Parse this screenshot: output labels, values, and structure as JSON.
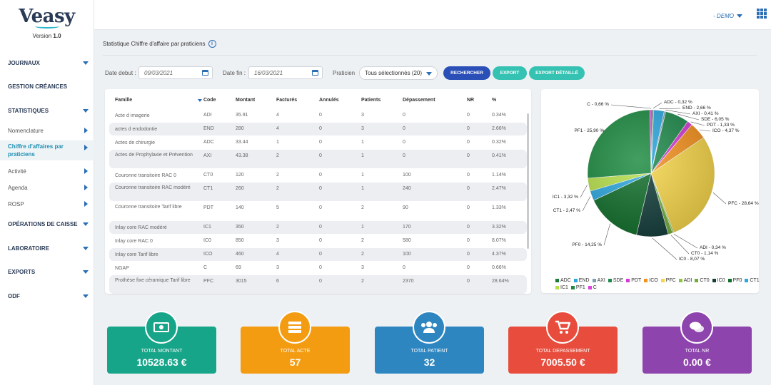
{
  "app": {
    "logo_text": "Veasy",
    "version_label": "Version",
    "version_number": "1.0"
  },
  "sidebar": {
    "items": [
      {
        "label": "JOURNAUX"
      },
      {
        "label": "GESTION CRÉANCES"
      },
      {
        "label": "STATISTIQUES"
      },
      {
        "label": "Nomenclature"
      },
      {
        "label": "Chiffre d'affaires par praticiens"
      },
      {
        "label": "Activité"
      },
      {
        "label": "Agenda"
      },
      {
        "label": "ROSP"
      },
      {
        "label": "OPÉRATIONS DE CAISSE"
      },
      {
        "label": "LABORATOIRE"
      },
      {
        "label": "EXPORTS"
      },
      {
        "label": "ODF"
      }
    ]
  },
  "topbar": {
    "user_label": "- DEMO"
  },
  "page": {
    "title": "Statistique Chiffre d'affaire par praticiens"
  },
  "filters": {
    "date_debut_label": "Date debut :",
    "date_debut_value": "09/03/2021",
    "date_fin_label": "Date fin :",
    "date_fin_value": "16/03/2021",
    "praticien_label": "Praticien",
    "praticien_value": "Tous sélectionnés (20)",
    "rechercher": "RECHERCHER",
    "export": "EXPORT",
    "export_detaille": "EXPORT DÉTAILLÉ"
  },
  "table": {
    "headers": [
      "Famille",
      "Code",
      "Montant",
      "Facturés",
      "Annulés",
      "Patients",
      "Dépassement",
      "NR",
      "%"
    ],
    "rows": [
      [
        "Acte d imagerie",
        "ADI",
        "35.91",
        "4",
        "0",
        "3",
        "0",
        "0",
        "0.34%"
      ],
      [
        "actes d endodontie",
        "END",
        "280",
        "4",
        "0",
        "3",
        "0",
        "0",
        "2.66%"
      ],
      [
        "Actes de chirurgie",
        "ADC",
        "33.44",
        "1",
        "0",
        "1",
        "0",
        "0",
        "0.32%"
      ],
      [
        "Actes de Prophylaxie et Prévention",
        "AXI",
        "43.38",
        "2",
        "0",
        "1",
        "0",
        "0",
        "0.41%"
      ],
      [
        "Couronne transitoire RAC 0",
        "CT0",
        "120",
        "2",
        "0",
        "1",
        "100",
        "0",
        "1.14%"
      ],
      [
        "Couronne transitoire RAC modéré",
        "CT1",
        "260",
        "2",
        "0",
        "1",
        "240",
        "0",
        "2.47%"
      ],
      [
        "Couronne transitoire Tarif libre",
        "PDT",
        "140",
        "5",
        "0",
        "2",
        "90",
        "0",
        "1.33%"
      ],
      [
        "Inlay core RAC modéré",
        "IC1",
        "350",
        "2",
        "0",
        "1",
        "170",
        "0",
        "3.32%"
      ],
      [
        "Inlay core RAC 0",
        "IC0",
        "850",
        "3",
        "0",
        "2",
        "580",
        "0",
        "8.07%"
      ],
      [
        "Inlay core Tarif libre",
        "ICO",
        "460",
        "4",
        "0",
        "2",
        "100",
        "0",
        "4.37%"
      ],
      [
        "NGAP",
        "C",
        "69",
        "3",
        "0",
        "3",
        "0",
        "0",
        "0.66%"
      ],
      [
        "Prothèse fixe céramique Tarif libre",
        "PFC",
        "3015",
        "6",
        "0",
        "2",
        "2370",
        "0",
        "28.64%"
      ]
    ]
  },
  "chart_data": {
    "type": "pie",
    "slices": [
      {
        "label": "C - 0,66 %",
        "code": "C",
        "value": 0.66,
        "color": "#e040e0"
      },
      {
        "label": "ADC - 0,32 %",
        "code": "ADC",
        "value": 0.32,
        "color": "#1a7a3a"
      },
      {
        "label": "END - 2,66 %",
        "code": "END",
        "value": 2.66,
        "color": "#2aa7e0"
      },
      {
        "label": "AXI - 0,41 %",
        "code": "AXI",
        "value": 0.41,
        "color": "#7aa0b8"
      },
      {
        "label": "SDE - 6,05 %",
        "code": "SDE",
        "value": 6.05,
        "color": "#1e8a4a"
      },
      {
        "label": "PDT - 1,33 %",
        "code": "PDT",
        "value": 1.33,
        "color": "#d63ad6"
      },
      {
        "label": "ICO - 4,37 %",
        "code": "ICO",
        "value": 4.37,
        "color": "#f5921e"
      },
      {
        "label": "PFC - 28,64 %",
        "code": "PFC",
        "value": 28.64,
        "color": "#f7d64a"
      },
      {
        "label": "ADI - 0,34 %",
        "code": "ADI",
        "value": 0.34,
        "color": "#8cc63f"
      },
      {
        "label": "CT0 - 1,14 %",
        "code": "CT0",
        "value": 1.14,
        "color": "#6fae3a"
      },
      {
        "label": "IC0 - 8,07 %",
        "code": "IC0",
        "value": 8.07,
        "color": "#123d3a"
      },
      {
        "label": "PF0 - 14,25 %",
        "code": "PF0",
        "value": 14.25,
        "color": "#0f6e2a"
      },
      {
        "label": "CT1 - 2,47 %",
        "code": "CT1",
        "value": 2.47,
        "color": "#2aa7e0"
      },
      {
        "label": "IC1 - 3,32 %",
        "code": "IC1",
        "value": 3.32,
        "color": "#b6e04a"
      },
      {
        "label": "PF1 - 25,90 %",
        "code": "PF1",
        "value": 25.9,
        "color": "#1a8a3e"
      }
    ],
    "legend": [
      {
        "code": "ADC",
        "color": "#1a7a3a"
      },
      {
        "code": "END",
        "color": "#2aa7e0"
      },
      {
        "code": "AXI",
        "color": "#7aa0b8"
      },
      {
        "code": "SDE",
        "color": "#1e8a4a"
      },
      {
        "code": "PDT",
        "color": "#d63ad6"
      },
      {
        "code": "ICO",
        "color": "#f5921e"
      },
      {
        "code": "PFC",
        "color": "#f7d64a"
      },
      {
        "code": "ADI",
        "color": "#8cc63f"
      },
      {
        "code": "CT0",
        "color": "#6fae3a"
      },
      {
        "code": "IC0",
        "color": "#123d3a"
      },
      {
        "code": "PF0",
        "color": "#0f6e2a"
      },
      {
        "code": "CT1",
        "color": "#2aa7e0"
      },
      {
        "code": "IC1",
        "color": "#b6e04a"
      },
      {
        "code": "PF1",
        "color": "#1a8a3e"
      },
      {
        "code": "C",
        "color": "#e040e0"
      }
    ]
  },
  "kpis": [
    {
      "label": "TOTAL MONTANT",
      "value": "10528.63 €",
      "color": "#17a589",
      "icon": "money-icon"
    },
    {
      "label": "TOTAL ACTE",
      "value": "57",
      "color": "#f39c12",
      "icon": "server-icon"
    },
    {
      "label": "TOTAL PATIENT",
      "value": "32",
      "color": "#2e86c1",
      "icon": "users-icon"
    },
    {
      "label": "TOTAL DEPASSEMENT",
      "value": "7005.50 €",
      "color": "#e74c3c",
      "icon": "cart-icon"
    },
    {
      "label": "TOTAL NR",
      "value": "0.00 €",
      "color": "#8e44ad",
      "icon": "chat-icon"
    }
  ],
  "colors": {
    "accent": "#2b6fb5",
    "primary_button": "#2a4fb7",
    "secondary_button": "#35c2b2"
  }
}
